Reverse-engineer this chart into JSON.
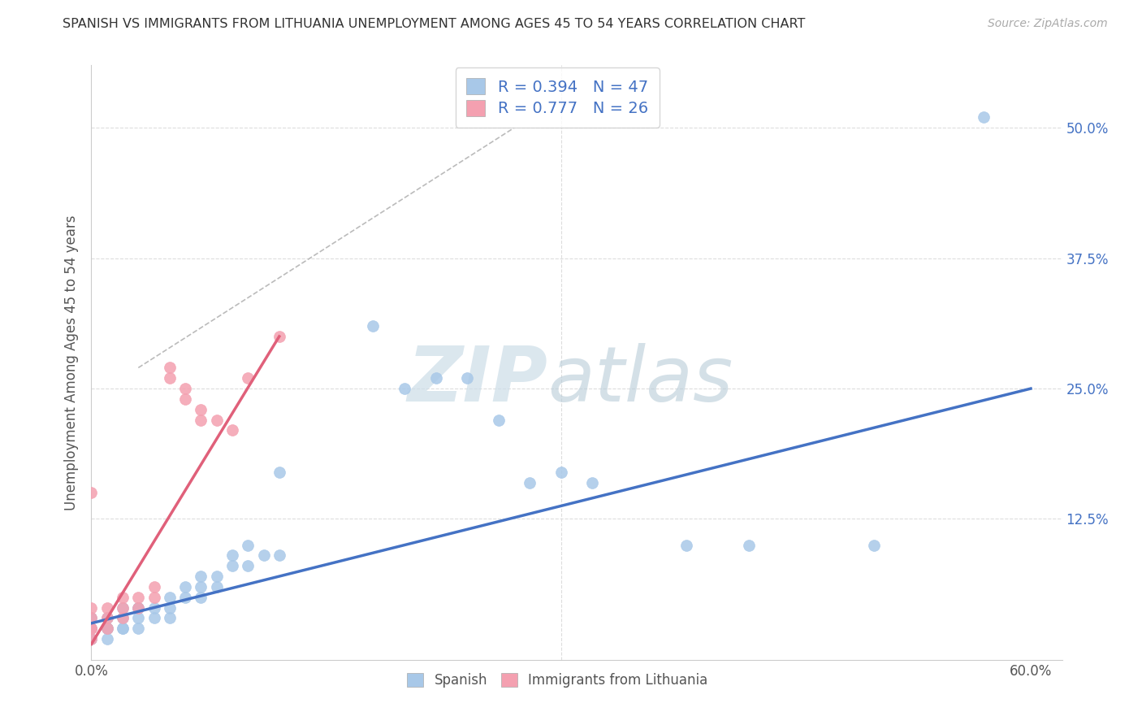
{
  "title": "SPANISH VS IMMIGRANTS FROM LITHUANIA UNEMPLOYMENT AMONG AGES 45 TO 54 YEARS CORRELATION CHART",
  "source": "Source: ZipAtlas.com",
  "ylabel": "Unemployment Among Ages 45 to 54 years",
  "xlim": [
    0.0,
    0.62
  ],
  "ylim": [
    -0.01,
    0.56
  ],
  "xtick_positions": [
    0.0,
    0.1,
    0.2,
    0.3,
    0.4,
    0.5,
    0.6
  ],
  "xticklabels": [
    "0.0%",
    "",
    "",
    "",
    "",
    "",
    "60.0%"
  ],
  "ytick_positions": [
    0.0,
    0.125,
    0.25,
    0.375,
    0.5
  ],
  "yticklabels": [
    "",
    "12.5%",
    "25.0%",
    "37.5%",
    "50.0%"
  ],
  "R_spanish": 0.394,
  "N_spanish": 47,
  "R_lithuania": 0.777,
  "N_lithuania": 26,
  "spanish_color": "#a8c8e8",
  "lithuania_color": "#f4a0b0",
  "trendline_spanish_color": "#4472c4",
  "trendline_lithuania_color": "#e0607a",
  "grid_color": "#dddddd",
  "spine_color": "#cccccc",
  "watermark_zip_color": "#d8e8f0",
  "watermark_atlas_color": "#c8d8e8",
  "spanish_scatter": [
    [
      0.0,
      0.01
    ],
    [
      0.0,
      0.02
    ],
    [
      0.0,
      0.02
    ],
    [
      0.0,
      0.03
    ],
    [
      0.01,
      0.01
    ],
    [
      0.01,
      0.02
    ],
    [
      0.01,
      0.02
    ],
    [
      0.01,
      0.03
    ],
    [
      0.02,
      0.02
    ],
    [
      0.02,
      0.02
    ],
    [
      0.02,
      0.03
    ],
    [
      0.02,
      0.04
    ],
    [
      0.03,
      0.02
    ],
    [
      0.03,
      0.03
    ],
    [
      0.03,
      0.04
    ],
    [
      0.03,
      0.04
    ],
    [
      0.04,
      0.03
    ],
    [
      0.04,
      0.04
    ],
    [
      0.05,
      0.03
    ],
    [
      0.05,
      0.04
    ],
    [
      0.05,
      0.05
    ],
    [
      0.06,
      0.05
    ],
    [
      0.06,
      0.06
    ],
    [
      0.07,
      0.05
    ],
    [
      0.07,
      0.06
    ],
    [
      0.07,
      0.07
    ],
    [
      0.08,
      0.06
    ],
    [
      0.08,
      0.07
    ],
    [
      0.09,
      0.08
    ],
    [
      0.09,
      0.09
    ],
    [
      0.1,
      0.08
    ],
    [
      0.1,
      0.1
    ],
    [
      0.11,
      0.09
    ],
    [
      0.12,
      0.09
    ],
    [
      0.12,
      0.17
    ],
    [
      0.18,
      0.31
    ],
    [
      0.2,
      0.25
    ],
    [
      0.22,
      0.26
    ],
    [
      0.24,
      0.26
    ],
    [
      0.26,
      0.22
    ],
    [
      0.28,
      0.16
    ],
    [
      0.3,
      0.17
    ],
    [
      0.32,
      0.16
    ],
    [
      0.38,
      0.1
    ],
    [
      0.42,
      0.1
    ],
    [
      0.5,
      0.1
    ],
    [
      0.57,
      0.51
    ]
  ],
  "lithuania_scatter": [
    [
      0.0,
      0.01
    ],
    [
      0.0,
      0.02
    ],
    [
      0.0,
      0.02
    ],
    [
      0.0,
      0.03
    ],
    [
      0.0,
      0.04
    ],
    [
      0.0,
      0.15
    ],
    [
      0.01,
      0.02
    ],
    [
      0.01,
      0.03
    ],
    [
      0.01,
      0.04
    ],
    [
      0.02,
      0.03
    ],
    [
      0.02,
      0.04
    ],
    [
      0.02,
      0.05
    ],
    [
      0.03,
      0.04
    ],
    [
      0.03,
      0.05
    ],
    [
      0.04,
      0.05
    ],
    [
      0.04,
      0.06
    ],
    [
      0.05,
      0.26
    ],
    [
      0.05,
      0.27
    ],
    [
      0.06,
      0.24
    ],
    [
      0.06,
      0.25
    ],
    [
      0.07,
      0.22
    ],
    [
      0.07,
      0.23
    ],
    [
      0.08,
      0.22
    ],
    [
      0.09,
      0.21
    ],
    [
      0.1,
      0.26
    ],
    [
      0.12,
      0.3
    ]
  ],
  "trendline_spanish": [
    [
      0.0,
      0.025
    ],
    [
      0.6,
      0.25
    ]
  ],
  "trendline_lithuania": [
    [
      0.0,
      0.005
    ],
    [
      0.12,
      0.3
    ]
  ],
  "dashed_line": [
    [
      0.03,
      0.27
    ],
    [
      0.27,
      0.5
    ]
  ],
  "figsize": [
    14.06,
    8.92
  ],
  "dpi": 100
}
